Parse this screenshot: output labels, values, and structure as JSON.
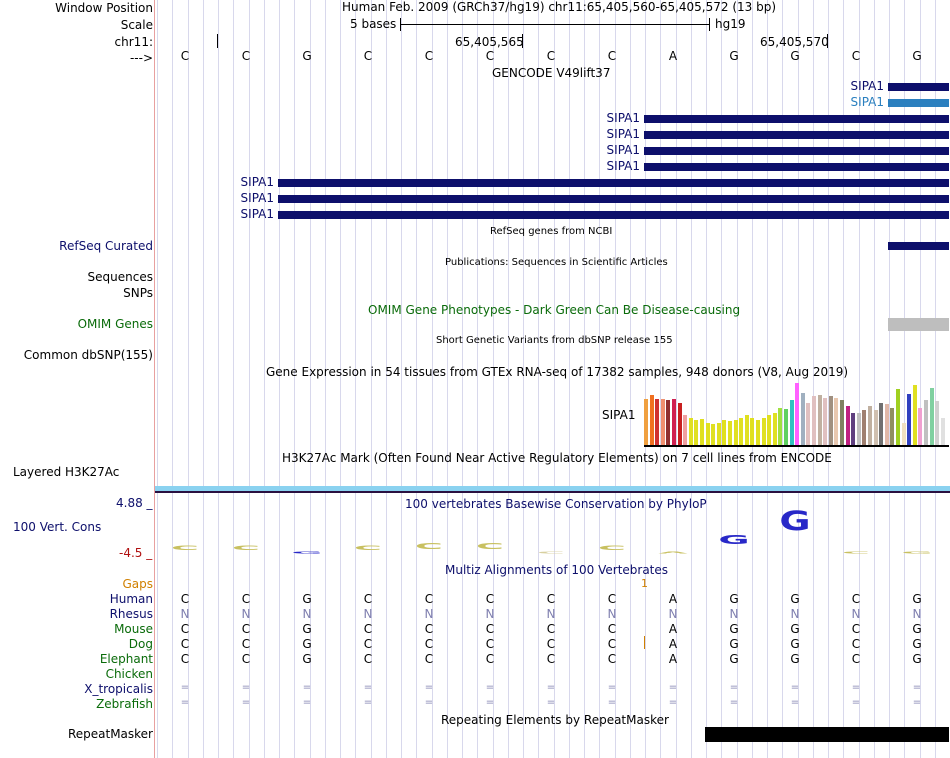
{
  "header": {
    "window_position_label": "Window Position",
    "window_position_value": "Human Feb. 2009 (GRCh37/hg19)   chr11:65,405,560-65,405,572 (13 bp)",
    "scale_label": "Scale",
    "scale_value": "5 bases",
    "scale_assembly": "hg19",
    "chrom_label": "chr11:",
    "coord_a": "65,405,565",
    "coord_b": "65,405,570",
    "strand_label": "--->",
    "bases": [
      "C",
      "C",
      "G",
      "C",
      "C",
      "C",
      "C",
      "C",
      "A",
      "G",
      "G",
      "C",
      "G"
    ]
  },
  "tracks": {
    "gencode": {
      "title": "GENCODE V49lift37",
      "genes": [
        "SIPA1",
        "SIPA1",
        "SIPA1",
        "SIPA1",
        "SIPA1",
        "SIPA1",
        "SIPA1",
        "SIPA1",
        "SIPA1"
      ]
    },
    "refseq": {
      "title": "RefSeq genes from NCBI",
      "label": "RefSeq Curated"
    },
    "publications": {
      "title": "Publications: Sequences in Scientific Articles",
      "label": "Sequences"
    },
    "snps_label": "SNPs",
    "omim": {
      "title": "OMIM Gene Phenotypes - Dark Green Can Be Disease-causing",
      "label": "OMIM Genes"
    },
    "dbsnp": {
      "title": "Short Genetic Variants from dbSNP release 155",
      "label": "Common dbSNP(155)"
    },
    "gtex": {
      "title": "Gene Expression in 54 tissues from GTEx RNA-seq of 17382 samples, 948 donors (V8, Aug 2019)",
      "gene": "SIPA1",
      "values": [
        0.93,
        1.0,
        0.93,
        0.93,
        0.9,
        0.93,
        0.84,
        0.6,
        0.55,
        0.5,
        0.52,
        0.45,
        0.42,
        0.45,
        0.5,
        0.48,
        0.5,
        0.55,
        0.6,
        0.55,
        0.5,
        0.55,
        0.6,
        0.65,
        0.75,
        0.72,
        0.9,
        1.25,
        1.05,
        0.85,
        0.98,
        1.0,
        0.95,
        0.98,
        0.95,
        0.9,
        0.78,
        0.65,
        0.65,
        0.7,
        0.78,
        0.7,
        0.85,
        0.82,
        0.75,
        1.12,
        0.45,
        1.02,
        1.2,
        0.75,
        0.9,
        1.15,
        0.88,
        0.55
      ],
      "colors": [
        "#f0a040",
        "#f07020",
        "#d03030",
        "#f09070",
        "#903030",
        "#d02050",
        "#c82020",
        "#f0a0a0",
        "#e0e020",
        "#e0e020",
        "#e0e020",
        "#e0e020",
        "#e0e020",
        "#e0e020",
        "#e0e020",
        "#e0e020",
        "#e0e020",
        "#e0e020",
        "#e0e020",
        "#e0e020",
        "#e0e020",
        "#e0e020",
        "#e0e020",
        "#e0e020",
        "#a0e040",
        "#60d060",
        "#30c0c0",
        "#ff60ff",
        "#a0b0c0",
        "#e0c0c0",
        "#e0c0c0",
        "#c0b0a0",
        "#e0c0c0",
        "#a09080",
        "#e8c8b0",
        "#808060",
        "#c02080",
        "#604080",
        "#c0c0c0",
        "#a08070",
        "#c0b0a0",
        "#d0c0b0",
        "#707070",
        "#e0b8a8",
        "#909060",
        "#a0d020",
        "#f0e0c0",
        "#3040c0",
        "#e0e020",
        "#f0a0d0",
        "#c0c0c0",
        "#80d0a0",
        "#d0d0d0",
        "#e0e0e0"
      ]
    },
    "h3k27ac": {
      "title": "H3K27Ac Mark (Often Found Near Active Regulatory Elements) on 7 cell lines from ENCODE",
      "label": "Layered H3K27Ac"
    },
    "phylop": {
      "title": "100 vertebrates Basewise Conservation by PhyloP",
      "max_label": "4.88 _",
      "min_label": "-4.5 _",
      "label": "100 Vert. Cons",
      "logo_bases": [
        "C",
        "C",
        "G",
        "C",
        "C",
        "C",
        "C",
        "C",
        "A",
        "G",
        "G",
        "C",
        "G"
      ],
      "scores": [
        0.4,
        0.4,
        0.2,
        0.4,
        0.5,
        0.5,
        0.2,
        0.4,
        0.0,
        0.8,
        1.8,
        0.2,
        0.0
      ],
      "colors": [
        "#c8c060",
        "#c8c060",
        "#2828c8",
        "#c8c060",
        "#c8c060",
        "#c8c060",
        "#d8d0a0",
        "#c8c060",
        "#c8c060",
        "#2828c8",
        "#2828c8",
        "#c8c060",
        "#c8c060"
      ]
    },
    "multiz": {
      "title": "Multiz Alignments of 100 Vertebrates",
      "gaps_label": "Gaps",
      "gaps_marker": "1",
      "species": [
        {
          "name": "Human",
          "bases": [
            "C",
            "C",
            "G",
            "C",
            "C",
            "C",
            "C",
            "C",
            "A",
            "G",
            "G",
            "C",
            "G"
          ]
        },
        {
          "name": "Rhesus",
          "bases": [
            "N",
            "N",
            "N",
            "N",
            "N",
            "N",
            "N",
            "N",
            "N",
            "N",
            "N",
            "N",
            "N"
          ]
        },
        {
          "name": "Mouse",
          "bases": [
            "C",
            "C",
            "G",
            "C",
            "C",
            "C",
            "C",
            "C",
            "A",
            "G",
            "G",
            "C",
            "G"
          ]
        },
        {
          "name": "Dog",
          "bases": [
            "C",
            "C",
            "G",
            "C",
            "C",
            "C",
            "C",
            "C",
            "A",
            "G",
            "G",
            "C",
            "G"
          ]
        },
        {
          "name": "Elephant",
          "bases": [
            "C",
            "C",
            "G",
            "C",
            "C",
            "C",
            "C",
            "C",
            "A",
            "G",
            "G",
            "C",
            "G"
          ]
        },
        {
          "name": "Chicken",
          "bases": [
            "",
            "",
            "",
            "",
            "",
            "",
            "",
            "",
            "",
            "",
            "",
            "",
            ""
          ]
        },
        {
          "name": "X_tropicalis",
          "bases": [
            "=",
            "=",
            "=",
            "=",
            "=",
            "=",
            "=",
            "=",
            "=",
            "=",
            "=",
            "=",
            "="
          ]
        },
        {
          "name": "Zebrafish",
          "bases": [
            "=",
            "=",
            "=",
            "=",
            "=",
            "=",
            "=",
            "=",
            "=",
            "=",
            "=",
            "=",
            "="
          ]
        }
      ]
    },
    "repeatmasker": {
      "title": "Repeating Elements by RepeatMasker",
      "label": "RepeatMasker"
    }
  }
}
